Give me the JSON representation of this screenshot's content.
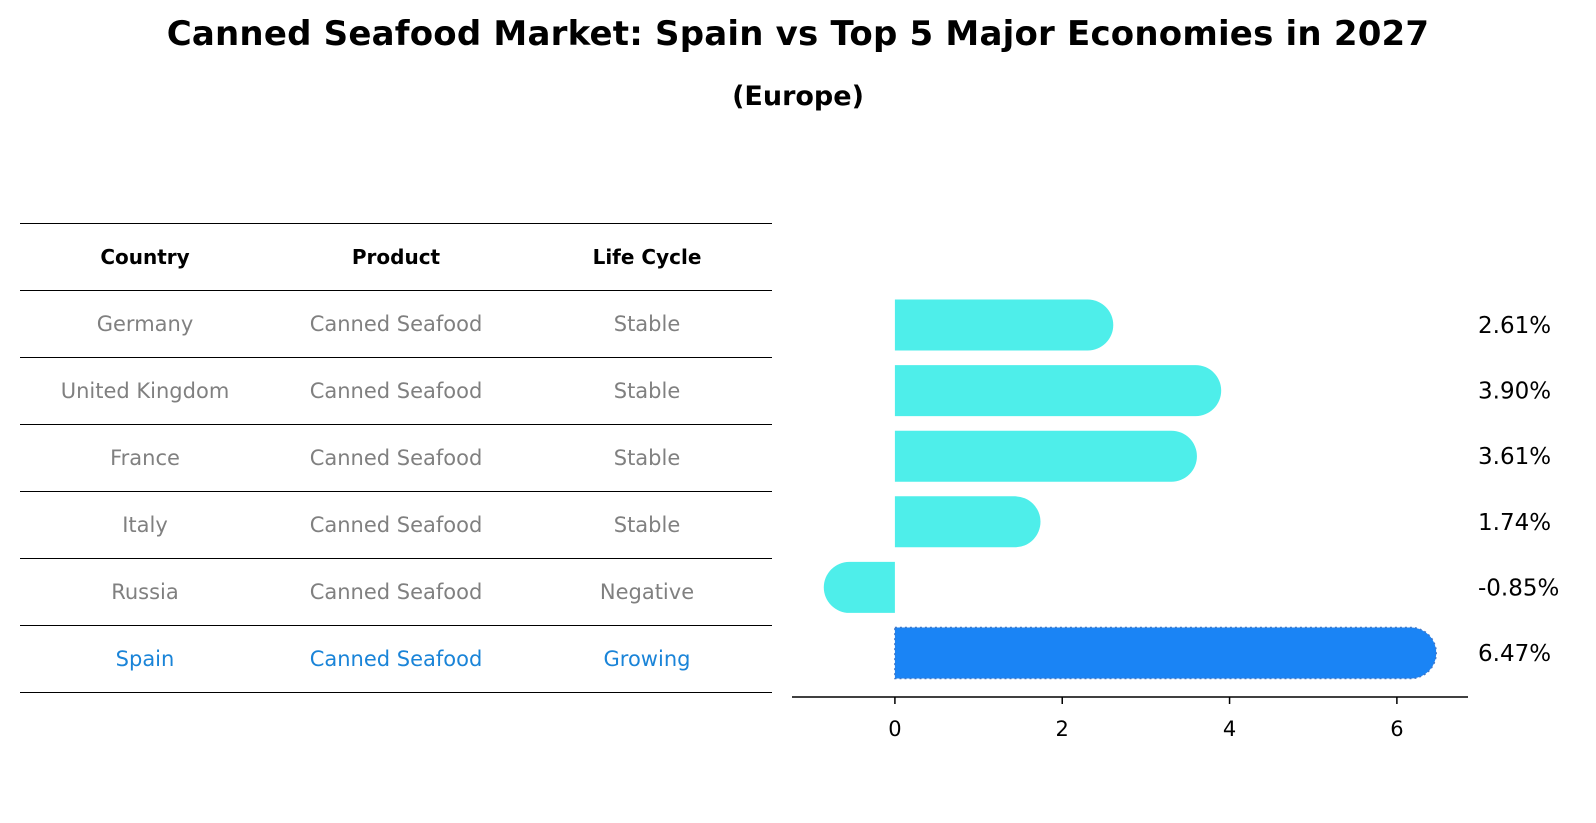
{
  "title": "Canned Seafood Market: Spain vs Top 5 Major Economies in 2027",
  "subtitle": "(Europe)",
  "table": {
    "headers": [
      "Country",
      "Product",
      "Life Cycle"
    ],
    "rows": [
      [
        "Germany",
        "Canned Seafood",
        "Stable"
      ],
      [
        "United Kingdom",
        "Canned Seafood",
        "Stable"
      ],
      [
        "France",
        "Canned Seafood",
        "Stable"
      ],
      [
        "Italy",
        "Canned Seafood",
        "Stable"
      ],
      [
        "Russia",
        "Canned Seafood",
        "Negative"
      ],
      [
        "Spain",
        "Canned Seafood",
        "Growing"
      ]
    ],
    "highlight_row": 5,
    "highlight_color": "#1a84d8",
    "text_color": "#808080"
  },
  "chart_data": {
    "type": "bar",
    "orientation": "horizontal",
    "categories": [
      "Germany",
      "United Kingdom",
      "France",
      "Italy",
      "Russia",
      "Spain"
    ],
    "values": [
      2.61,
      3.9,
      3.61,
      1.74,
      -0.85,
      6.47
    ],
    "value_labels": [
      "2.61%",
      "3.90%",
      "3.61%",
      "1.74%",
      "-0.85%",
      "6.47%"
    ],
    "xticks": [
      0,
      2,
      4,
      6
    ],
    "xlim": [
      -1.23,
      6.85
    ],
    "bar_color": "#4eeeea",
    "highlight_color": "#1a84f5",
    "highlight_index": 5,
    "grid": false
  }
}
